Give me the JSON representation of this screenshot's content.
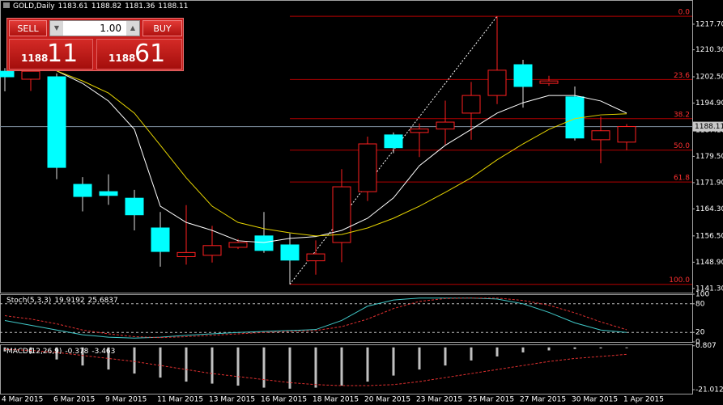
{
  "header": {
    "symbol": "GOLD,Daily"
  },
  "trade_panel": {
    "sell": "SELL",
    "buy": "BUY",
    "lots": "1.00",
    "sell_price": {
      "big_figure": "1188",
      "pips": "11"
    },
    "buy_price": {
      "big_figure": "1188",
      "pips": "61"
    }
  },
  "chart_data": [
    {
      "type": "candlestick",
      "categories": [
        "4 Mar 2015",
        null,
        "6 Mar 2015",
        null,
        "9 Mar 2015",
        null,
        "11 Mar 2015",
        null,
        "13 Mar 2015",
        null,
        "16 Mar 2015",
        null,
        "18 Mar 2015",
        null,
        "20 Mar 2015",
        null,
        "23 Mar 2015",
        null,
        "25 Mar 2015",
        null,
        "27 Mar 2015",
        null,
        "30 Mar 2015",
        null,
        "1 Apr 2015"
      ],
      "open": [
        1204.1,
        1201.8,
        1202.5,
        1171.4,
        1169.3,
        1167.4,
        1158.8,
        1150.5,
        1150.9,
        1153.2,
        1156.5,
        1153.9,
        1149.3,
        1154.6,
        1169.3,
        1185.7,
        1186.4,
        1187.4,
        1192.0,
        1197.1,
        1206.0,
        1200.6,
        1196.7,
        1184.3,
        1183.61
      ],
      "high": [
        1205.0,
        1205.0,
        1203.5,
        1173.5,
        1174.3,
        1169.8,
        1163.4,
        1165.4,
        1159.4,
        1155.6,
        1163.4,
        1157.2,
        1155.2,
        1175.8,
        1185.2,
        1186.4,
        1189.0,
        1195.6,
        1201.0,
        1220.0,
        1207.4,
        1202.8,
        1199.7,
        1191.0,
        1188.82
      ],
      "low": [
        1198.3,
        1198.4,
        1172.9,
        1163.6,
        1165.5,
        1158.1,
        1147.6,
        1148.2,
        1148.8,
        1152.7,
        1151.6,
        1142.5,
        1145.3,
        1148.9,
        1166.6,
        1180.4,
        1179.3,
        1182.9,
        1184.3,
        1194.6,
        1193.6,
        1199.9,
        1184.1,
        1177.5,
        1181.36
      ],
      "close": [
        1202.5,
        1204.1,
        1176.3,
        1167.9,
        1168.2,
        1162.6,
        1152.0,
        1151.7,
        1153.7,
        1154.6,
        1152.3,
        1149.5,
        1151.3,
        1170.7,
        1183.1,
        1182.0,
        1187.4,
        1189.4,
        1197.1,
        1204.4,
        1199.7,
        1201.3,
        1184.8,
        1186.9,
        1188.11
      ],
      "up_color": "#ff2020",
      "down_color": "#00ffff",
      "ylim": [
        1140.1,
        1224.7
      ],
      "yticks": [
        {
          "value": 1141.3,
          "label": "1141.30"
        },
        {
          "value": 1148.9,
          "label": "1148.90"
        },
        {
          "value": 1156.5,
          "label": "1156.50"
        },
        {
          "value": 1164.3,
          "label": "1164.30"
        },
        {
          "value": 1171.9,
          "label": "1171.90"
        },
        {
          "value": 1179.5,
          "label": "1179.50"
        },
        {
          "value": 1187.1,
          "label": "1187.10"
        },
        {
          "value": 1194.9,
          "label": "1194.90"
        },
        {
          "value": 1202.5,
          "label": "1202.50"
        },
        {
          "value": 1210.3,
          "label": "1210.30"
        },
        {
          "value": 1217.7,
          "label": "1217.70"
        }
      ],
      "bid": 1188.11,
      "moving_averages": [
        {
          "color": "#ffffff",
          "values": [
            null,
            null,
            1204.2,
            1200.6,
            1195.5,
            1187.3,
            1165.1,
            1160.4,
            1158.1,
            1155.1,
            1154.6,
            1155.8,
            1156.3,
            1158.1,
            1161.6,
            1167.5,
            1176.8,
            1182.7,
            1187.3,
            1192.0,
            1195.0,
            1197.1,
            1197.1,
            1195.5,
            1192.0
          ]
        },
        {
          "color": "#e6d400",
          "values": [
            null,
            null,
            1204.2,
            1201.3,
            1197.8,
            1192.0,
            1182.7,
            1173.3,
            1165.1,
            1160.4,
            1158.6,
            1157.4,
            1156.5,
            1156.9,
            1158.8,
            1161.6,
            1165.1,
            1169.1,
            1173.3,
            1178.5,
            1183.1,
            1187.3,
            1190.4,
            1191.5,
            1191.8
          ]
        }
      ],
      "fibonacci": {
        "color": "#b40000",
        "label_color": "#ff3030",
        "levels": [
          {
            "value": 1220.0,
            "label": "0.0"
          },
          {
            "value": 1201.7,
            "label": "23.6"
          },
          {
            "value": 1190.4,
            "label": "38.2"
          },
          {
            "value": 1181.3,
            "label": "50.0"
          },
          {
            "value": 1172.1,
            "label": "61.8"
          },
          {
            "value": 1142.5,
            "label": "100.0"
          }
        ]
      }
    },
    {
      "type": "line",
      "title": "Stoch(5,3,3)",
      "series": [
        {
          "color": "#40c8c8",
          "dashed": false,
          "values": [
            45,
            35,
            25,
            15,
            10,
            8,
            10,
            14,
            17,
            20,
            22,
            24,
            26,
            45,
            75,
            88,
            92,
            92,
            92,
            90,
            80,
            62,
            40,
            25,
            19.9192
          ]
        },
        {
          "color": "#e03030",
          "dashed": true,
          "values": [
            55,
            48,
            38,
            25,
            17,
            11,
            9,
            11,
            14,
            17,
            20,
            22,
            24,
            32,
            48,
            70,
            85,
            91,
            92,
            92,
            87,
            77,
            61,
            42,
            25.6837
          ]
        }
      ],
      "ylim": [
        0,
        100
      ],
      "yticks": [
        0,
        20,
        80,
        100
      ],
      "levels": [
        20,
        80
      ]
    },
    {
      "type": "macd",
      "title": "MACD(12,26,9)",
      "series": [
        {
          "kind": "bar",
          "color": "#c0c0c0",
          "values": [
            -2,
            -3,
            -6,
            -9,
            -11,
            -13,
            -15,
            -17,
            -18,
            -19,
            -20,
            -20.5,
            -20,
            -19,
            -17,
            -14,
            -11,
            -9,
            -6.5,
            -4.5,
            -2.5,
            -1.5,
            -0.8,
            -0.5,
            -0.378
          ]
        },
        {
          "kind": "line",
          "color": "#e03030",
          "dashed": true,
          "values": [
            -1,
            -1.5,
            -2.5,
            -4,
            -5.5,
            -7,
            -9,
            -11,
            -13,
            -14.5,
            -16,
            -17.5,
            -18.5,
            -19,
            -19,
            -18.5,
            -17,
            -15,
            -13,
            -11,
            -9,
            -7,
            -5.5,
            -4.5,
            -3.463
          ]
        }
      ],
      "ylim": [
        -23,
        1.5
      ],
      "yticks": [
        {
          "value": 0.807,
          "label": "0.807"
        },
        {
          "value": -21.012,
          "label": "-21.012"
        }
      ]
    }
  ]
}
